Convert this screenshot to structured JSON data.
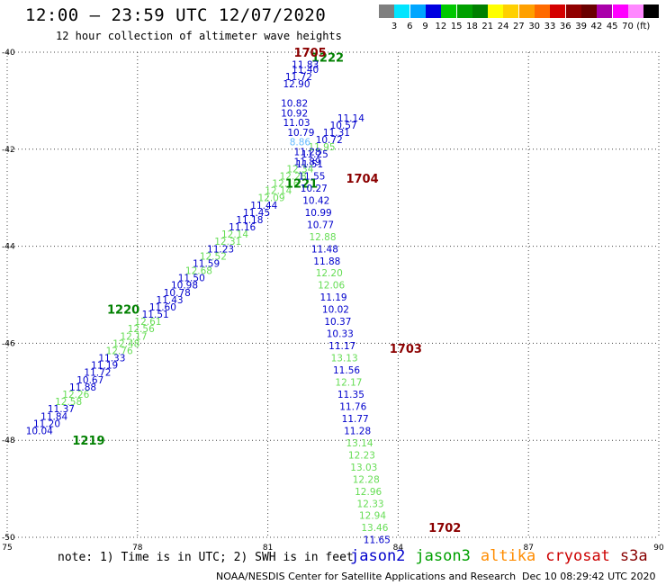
{
  "header": {
    "title": "12:00 – 23:59 UTC 12/07/2020",
    "subtitle": "12 hour collection of altimeter wave heights"
  },
  "color_scale": {
    "colors": [
      "#7f7f7f",
      "#00e5ff",
      "#00a6ff",
      "#0000e0",
      "#00c800",
      "#00a000",
      "#008000",
      "#ffff00",
      "#ffd000",
      "#ffa000",
      "#ff6a00",
      "#d40000",
      "#900000",
      "#6a0000",
      "#aa00aa",
      "#ff00ff",
      "#ff88ff",
      "#000000"
    ],
    "labels": [
      "3",
      "6",
      "9",
      "12",
      "15",
      "18",
      "21",
      "24",
      "27",
      "30",
      "33",
      "36",
      "39",
      "42",
      "45",
      "70",
      "(ft)"
    ]
  },
  "footer": {
    "note": "note: 1) Time is in UTC; 2) SWH is in feet",
    "credit": "NOAA/NESDIS Center for Satellite Applications and Research",
    "timestamp": "Dec 10 08:29:42 UTC 2020"
  },
  "legend": [
    {
      "name": "jason2",
      "color": "#0000cc"
    },
    {
      "name": "jason3",
      "color": "#00a000"
    },
    {
      "name": "altika",
      "color": "#ff8c00"
    },
    {
      "name": "cryosat",
      "color": "#cc0000"
    },
    {
      "name": "s3a",
      "color": "#880000"
    }
  ],
  "colors": {
    "jason2_value": "#0000cc",
    "jason3_value": "#66dd55",
    "jason3_time": "#008000",
    "cryo_time": "#8b0000",
    "light_value": "#66bbff",
    "grid": "#444444"
  },
  "chart_data": {
    "type": "scatter",
    "xlim": [
      75,
      90
    ],
    "ylim": [
      -50,
      -40
    ],
    "x_ticks": [
      75,
      78,
      81,
      84,
      87,
      90
    ],
    "y_ticks": [
      -40,
      -42,
      -44,
      -46,
      -48,
      -50
    ],
    "grid": true,
    "tracks": [
      {
        "satellite": "jason",
        "time_labels": [
          {
            "lon": 76.5,
            "lat": -48.0,
            "label": "1219",
            "color": "jason3_time"
          },
          {
            "lon": 77.3,
            "lat": -45.3,
            "label": "1220",
            "color": "jason3_time"
          },
          {
            "lon": 81.4,
            "lat": -42.7,
            "label": "1221",
            "color": "jason3_time"
          },
          {
            "lon": 82.0,
            "lat": -40.1,
            "label": "1222",
            "color": "jason3_time"
          }
        ],
        "points": [
          {
            "lon": 75.43,
            "lat": -47.8,
            "v": "10.04",
            "c": "jason2_value"
          },
          {
            "lon": 75.6,
            "lat": -47.65,
            "v": "11.20",
            "c": "jason2_value"
          },
          {
            "lon": 75.77,
            "lat": -47.5,
            "v": "11.84",
            "c": "jason2_value"
          },
          {
            "lon": 75.93,
            "lat": -47.35,
            "v": "11.37",
            "c": "jason2_value"
          },
          {
            "lon": 76.1,
            "lat": -47.2,
            "v": "12.58",
            "c": "jason3_value"
          },
          {
            "lon": 76.27,
            "lat": -47.05,
            "v": "12.26",
            "c": "jason3_value"
          },
          {
            "lon": 76.43,
            "lat": -46.9,
            "v": "11.88",
            "c": "jason2_value"
          },
          {
            "lon": 76.6,
            "lat": -46.75,
            "v": "10.67",
            "c": "jason2_value"
          },
          {
            "lon": 76.77,
            "lat": -46.6,
            "v": "11.72",
            "c": "jason2_value"
          },
          {
            "lon": 76.93,
            "lat": -46.45,
            "v": "11.19",
            "c": "jason2_value"
          },
          {
            "lon": 77.1,
            "lat": -46.3,
            "v": "11.33",
            "c": "jason2_value"
          },
          {
            "lon": 77.27,
            "lat": -46.15,
            "v": "12.76",
            "c": "jason3_value"
          },
          {
            "lon": 77.43,
            "lat": -46.0,
            "v": "12.48",
            "c": "jason3_value"
          },
          {
            "lon": 77.6,
            "lat": -45.85,
            "v": "12.17",
            "c": "jason3_value"
          },
          {
            "lon": 77.77,
            "lat": -45.7,
            "v": "12.56",
            "c": "jason3_value"
          },
          {
            "lon": 77.93,
            "lat": -45.55,
            "v": "12.61",
            "c": "jason3_value"
          },
          {
            "lon": 78.1,
            "lat": -45.4,
            "v": "11.51",
            "c": "jason2_value"
          },
          {
            "lon": 78.27,
            "lat": -45.25,
            "v": "11.60",
            "c": "jason2_value"
          },
          {
            "lon": 78.43,
            "lat": -45.1,
            "v": "11.43",
            "c": "jason2_value"
          },
          {
            "lon": 78.6,
            "lat": -44.95,
            "v": "10.78",
            "c": "jason2_value"
          },
          {
            "lon": 78.77,
            "lat": -44.8,
            "v": "10.98",
            "c": "jason2_value"
          },
          {
            "lon": 78.93,
            "lat": -44.65,
            "v": "11.50",
            "c": "jason2_value"
          },
          {
            "lon": 79.1,
            "lat": -44.5,
            "v": "12.68",
            "c": "jason3_value"
          },
          {
            "lon": 79.27,
            "lat": -44.35,
            "v": "11.59",
            "c": "jason2_value"
          },
          {
            "lon": 79.43,
            "lat": -44.2,
            "v": "12.52",
            "c": "jason3_value"
          },
          {
            "lon": 79.6,
            "lat": -44.05,
            "v": "11.23",
            "c": "jason2_value"
          },
          {
            "lon": 79.77,
            "lat": -43.9,
            "v": "12.31",
            "c": "jason3_value"
          },
          {
            "lon": 79.93,
            "lat": -43.75,
            "v": "12.14",
            "c": "jason3_value"
          },
          {
            "lon": 80.1,
            "lat": -43.6,
            "v": "11.16",
            "c": "jason2_value"
          },
          {
            "lon": 80.27,
            "lat": -43.45,
            "v": "11.18",
            "c": "jason2_value"
          },
          {
            "lon": 80.43,
            "lat": -43.3,
            "v": "11.45",
            "c": "jason2_value"
          },
          {
            "lon": 80.6,
            "lat": -43.15,
            "v": "11.44",
            "c": "jason2_value"
          },
          {
            "lon": 80.77,
            "lat": -43.0,
            "v": "12.09",
            "c": "jason3_value"
          },
          {
            "lon": 80.93,
            "lat": -42.85,
            "v": "12.14",
            "c": "jason3_value"
          },
          {
            "lon": 81.1,
            "lat": -42.7,
            "v": "12.16",
            "c": "jason3_value"
          },
          {
            "lon": 81.27,
            "lat": -42.55,
            "v": "12.28",
            "c": "jason3_value"
          },
          {
            "lon": 81.43,
            "lat": -42.4,
            "v": "12.34",
            "c": "jason3_value"
          },
          {
            "lon": 81.6,
            "lat": -42.25,
            "v": "11.89",
            "c": "jason2_value"
          },
          {
            "lon": 81.77,
            "lat": -42.1,
            "v": "11.25",
            "c": "jason2_value"
          },
          {
            "lon": 81.93,
            "lat": -41.95,
            "v": "11.95",
            "c": "jason3_value"
          },
          {
            "lon": 82.1,
            "lat": -41.8,
            "v": "10.72",
            "c": "jason2_value"
          },
          {
            "lon": 82.27,
            "lat": -41.65,
            "v": "11.31",
            "c": "jason2_value"
          },
          {
            "lon": 82.43,
            "lat": -41.5,
            "v": "10.57",
            "c": "jason2_value"
          },
          {
            "lon": 82.6,
            "lat": -41.35,
            "v": "11.14",
            "c": "jason2_value"
          }
        ]
      },
      {
        "satellite": "cryosat",
        "time_labels": [
          {
            "lon": 81.6,
            "lat": -40.0,
            "label": "1705",
            "color": "cryo_time"
          },
          {
            "lon": 82.8,
            "lat": -42.6,
            "label": "1704",
            "color": "cryo_time"
          },
          {
            "lon": 83.8,
            "lat": -46.1,
            "label": "1703",
            "color": "cryo_time"
          },
          {
            "lon": 84.7,
            "lat": -49.8,
            "label": "1702",
            "color": "cryo_time"
          }
        ],
        "points": [
          {
            "lon": 81.55,
            "lat": -40.25,
            "v": "11.83",
            "c": "jason2_value"
          },
          {
            "lon": 81.55,
            "lat": -40.35,
            "v": "11.40",
            "c": "jason2_value"
          },
          {
            "lon": 81.4,
            "lat": -40.5,
            "v": "11.72",
            "c": "jason2_value"
          },
          {
            "lon": 81.35,
            "lat": -40.65,
            "v": "12.90",
            "c": "jason2_value"
          },
          {
            "lon": 81.3,
            "lat": -41.05,
            "v": "10.82",
            "c": "jason2_value"
          },
          {
            "lon": 81.3,
            "lat": -41.25,
            "v": "10.92",
            "c": "jason2_value"
          },
          {
            "lon": 81.35,
            "lat": -41.45,
            "v": "11.03",
            "c": "jason2_value"
          },
          {
            "lon": 81.45,
            "lat": -41.65,
            "v": "10.79",
            "c": "jason2_value"
          },
          {
            "lon": 81.5,
            "lat": -41.85,
            "v": "8.86",
            "c": "light_value"
          },
          {
            "lon": 81.6,
            "lat": -42.05,
            "v": "11.28",
            "c": "jason2_value"
          },
          {
            "lon": 81.65,
            "lat": -42.3,
            "v": "11.51",
            "c": "jason2_value"
          },
          {
            "lon": 81.7,
            "lat": -42.55,
            "v": "11.55",
            "c": "jason2_value"
          },
          {
            "lon": 81.75,
            "lat": -42.8,
            "v": "10.27",
            "c": "jason2_value"
          },
          {
            "lon": 81.8,
            "lat": -43.05,
            "v": "10.42",
            "c": "jason2_value"
          },
          {
            "lon": 81.85,
            "lat": -43.3,
            "v": "10.99",
            "c": "jason2_value"
          },
          {
            "lon": 81.9,
            "lat": -43.55,
            "v": "10.77",
            "c": "jason2_value"
          },
          {
            "lon": 81.95,
            "lat": -43.8,
            "v": "12.88",
            "c": "jason3_value"
          },
          {
            "lon": 82.0,
            "lat": -44.05,
            "v": "11.48",
            "c": "jason2_value"
          },
          {
            "lon": 82.05,
            "lat": -44.3,
            "v": "11.88",
            "c": "jason2_value"
          },
          {
            "lon": 82.1,
            "lat": -44.55,
            "v": "12.20",
            "c": "jason3_value"
          },
          {
            "lon": 82.15,
            "lat": -44.8,
            "v": "12.06",
            "c": "jason3_value"
          },
          {
            "lon": 82.2,
            "lat": -45.05,
            "v": "11.19",
            "c": "jason2_value"
          },
          {
            "lon": 82.25,
            "lat": -45.3,
            "v": "10.02",
            "c": "jason2_value"
          },
          {
            "lon": 82.3,
            "lat": -45.55,
            "v": "10.37",
            "c": "jason2_value"
          },
          {
            "lon": 82.35,
            "lat": -45.8,
            "v": "10.33",
            "c": "jason2_value"
          },
          {
            "lon": 82.4,
            "lat": -46.05,
            "v": "11.17",
            "c": "jason2_value"
          },
          {
            "lon": 82.45,
            "lat": -46.3,
            "v": "13.13",
            "c": "jason3_value"
          },
          {
            "lon": 82.5,
            "lat": -46.55,
            "v": "11.56",
            "c": "jason2_value"
          },
          {
            "lon": 82.55,
            "lat": -46.8,
            "v": "12.17",
            "c": "jason3_value"
          },
          {
            "lon": 82.6,
            "lat": -47.05,
            "v": "11.35",
            "c": "jason2_value"
          },
          {
            "lon": 82.65,
            "lat": -47.3,
            "v": "11.76",
            "c": "jason2_value"
          },
          {
            "lon": 82.7,
            "lat": -47.55,
            "v": "11.77",
            "c": "jason2_value"
          },
          {
            "lon": 82.75,
            "lat": -47.8,
            "v": "11.28",
            "c": "jason2_value"
          },
          {
            "lon": 82.8,
            "lat": -48.05,
            "v": "13.14",
            "c": "jason3_value"
          },
          {
            "lon": 82.85,
            "lat": -48.3,
            "v": "12.23",
            "c": "jason3_value"
          },
          {
            "lon": 82.9,
            "lat": -48.55,
            "v": "13.03",
            "c": "jason3_value"
          },
          {
            "lon": 82.95,
            "lat": -48.8,
            "v": "12.28",
            "c": "jason3_value"
          },
          {
            "lon": 83.0,
            "lat": -49.05,
            "v": "12.96",
            "c": "jason3_value"
          },
          {
            "lon": 83.05,
            "lat": -49.3,
            "v": "12.33",
            "c": "jason3_value"
          },
          {
            "lon": 83.1,
            "lat": -49.55,
            "v": "12.94",
            "c": "jason3_value"
          },
          {
            "lon": 83.15,
            "lat": -49.8,
            "v": "13.46",
            "c": "jason3_value"
          },
          {
            "lon": 83.2,
            "lat": -50.05,
            "v": "11.65",
            "c": "jason2_value"
          }
        ]
      }
    ]
  }
}
